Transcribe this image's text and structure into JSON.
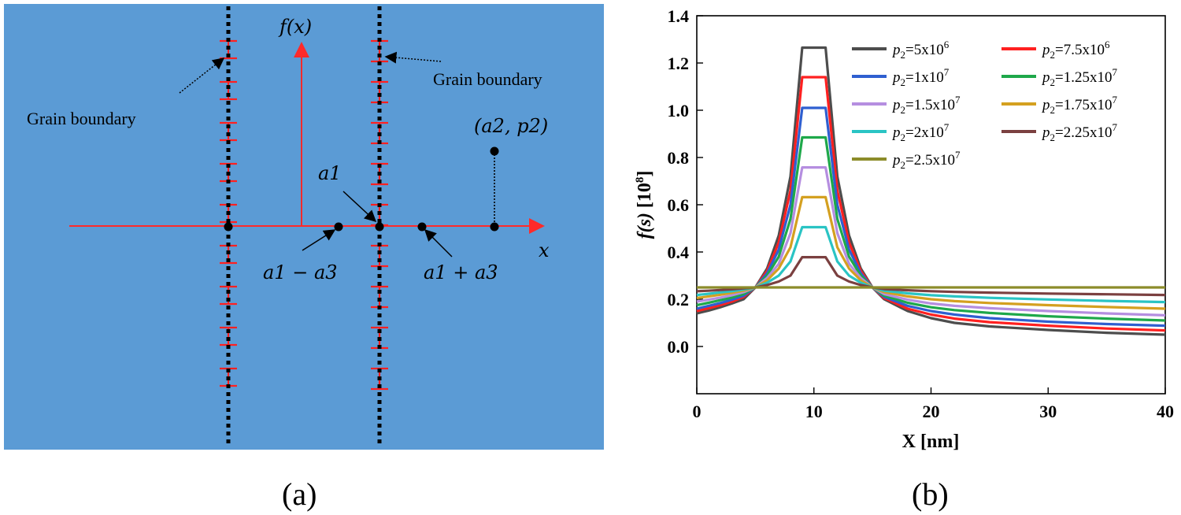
{
  "panel_a": {
    "label": "(a)",
    "colors": {
      "background": "#5b9bd5",
      "axis": "#ff2a2a",
      "boundary": "#000000",
      "dislocation": "#ff2020"
    },
    "gb_label_left": "Grain boundary",
    "gb_label_right": "Grain boundary",
    "axis_y_label": "f(x)",
    "axis_x_label": "x",
    "point_a1": "a1",
    "point_a1_minus_a3": "a1 − a3",
    "point_a1_plus_a3": "a1 + a3",
    "point_a2_p2": "(a2, p2)"
  },
  "panel_b": {
    "label": "(b)",
    "chart_data": {
      "type": "line",
      "title": "",
      "xlabel": "X [nm]",
      "ylabel": "f(s) [10^8]",
      "xlim": [
        0,
        40
      ],
      "ylim": [
        -0.2,
        1.4
      ],
      "xticks": [
        0,
        10,
        20,
        30,
        40
      ],
      "yticks": [
        0.0,
        0.2,
        0.4,
        0.6,
        0.8,
        1.0,
        1.2,
        1.4
      ],
      "x_samples": [
        0,
        1,
        2,
        3,
        4,
        5,
        6,
        7,
        8,
        9,
        11,
        12,
        13,
        14,
        15,
        16,
        18,
        20,
        22,
        25,
        30,
        35,
        40
      ],
      "legend_position": "top-right",
      "series": [
        {
          "name": "p2=5x10^6",
          "legend": "=5x10",
          "exp": "6",
          "color": "#4d4d4d",
          "plateau": 1.265,
          "values": [
            0.14,
            0.152,
            0.166,
            0.182,
            0.2,
            0.25,
            0.33,
            0.47,
            0.72,
            1.265,
            1.265,
            0.72,
            0.47,
            0.33,
            0.25,
            0.2,
            0.15,
            0.12,
            0.1,
            0.085,
            0.07,
            0.058,
            0.05
          ]
        },
        {
          "name": "p2=7.5x10^6",
          "legend": "=7.5x10",
          "exp": "6",
          "color": "#ff2020",
          "plateau": 1.14,
          "values": [
            0.15,
            0.162,
            0.175,
            0.19,
            0.21,
            0.25,
            0.32,
            0.44,
            0.66,
            1.14,
            1.14,
            0.66,
            0.44,
            0.32,
            0.25,
            0.205,
            0.16,
            0.135,
            0.118,
            0.103,
            0.088,
            0.076,
            0.068
          ]
        },
        {
          "name": "p2=1x10^7",
          "legend": "=1x10",
          "exp": "7",
          "color": "#2f5fd0",
          "plateau": 1.01,
          "values": [
            0.16,
            0.172,
            0.184,
            0.198,
            0.215,
            0.25,
            0.31,
            0.41,
            0.6,
            1.01,
            1.01,
            0.6,
            0.41,
            0.31,
            0.25,
            0.21,
            0.172,
            0.15,
            0.135,
            0.12,
            0.105,
            0.095,
            0.088
          ]
        },
        {
          "name": "p2=1.25x10^7",
          "legend": "=1.25x10",
          "exp": "7",
          "color": "#1ea84a",
          "plateau": 0.885,
          "values": [
            0.175,
            0.185,
            0.196,
            0.207,
            0.222,
            0.25,
            0.3,
            0.38,
            0.54,
            0.885,
            0.885,
            0.54,
            0.38,
            0.3,
            0.25,
            0.215,
            0.185,
            0.166,
            0.154,
            0.142,
            0.128,
            0.118,
            0.11
          ]
        },
        {
          "name": "p2=1.5x10^7",
          "legend": "=1.5x10",
          "exp": "7",
          "color": "#b58ee0",
          "plateau": 0.758,
          "values": [
            0.19,
            0.198,
            0.207,
            0.217,
            0.23,
            0.25,
            0.29,
            0.35,
            0.48,
            0.758,
            0.758,
            0.48,
            0.35,
            0.29,
            0.25,
            0.222,
            0.198,
            0.182,
            0.172,
            0.162,
            0.15,
            0.14,
            0.132
          ]
        },
        {
          "name": "p2=1.75x10^7",
          "legend": "=1.75x10",
          "exp": "7",
          "color": "#d4a020",
          "plateau": 0.632,
          "values": [
            0.205,
            0.212,
            0.219,
            0.227,
            0.236,
            0.25,
            0.28,
            0.33,
            0.42,
            0.632,
            0.632,
            0.42,
            0.33,
            0.28,
            0.25,
            0.23,
            0.212,
            0.2,
            0.192,
            0.184,
            0.175,
            0.167,
            0.16
          ]
        },
        {
          "name": "p2=2x10^7",
          "legend": "=2x10",
          "exp": "7",
          "color": "#2ac4c4",
          "plateau": 0.505,
          "values": [
            0.218,
            0.223,
            0.229,
            0.234,
            0.241,
            0.25,
            0.27,
            0.3,
            0.36,
            0.505,
            0.505,
            0.36,
            0.3,
            0.27,
            0.25,
            0.236,
            0.225,
            0.217,
            0.212,
            0.206,
            0.199,
            0.193,
            0.188
          ]
        },
        {
          "name": "p2=2.25x10^7",
          "legend": "=2.25x10",
          "exp": "7",
          "color": "#7b4040",
          "plateau": 0.378,
          "values": [
            0.234,
            0.236,
            0.239,
            0.242,
            0.246,
            0.25,
            0.26,
            0.275,
            0.3,
            0.378,
            0.378,
            0.3,
            0.275,
            0.26,
            0.25,
            0.243,
            0.238,
            0.234,
            0.231,
            0.228,
            0.224,
            0.221,
            0.218
          ]
        },
        {
          "name": "p2=2.5x10^7",
          "legend": "=2.5x10",
          "exp": "7",
          "color": "#8c8c2a",
          "plateau": 0.25,
          "values": [
            0.25,
            0.25,
            0.25,
            0.25,
            0.25,
            0.25,
            0.25,
            0.25,
            0.25,
            0.25,
            0.25,
            0.25,
            0.25,
            0.25,
            0.25,
            0.25,
            0.25,
            0.25,
            0.25,
            0.25,
            0.25,
            0.25,
            0.25
          ]
        }
      ]
    }
  }
}
